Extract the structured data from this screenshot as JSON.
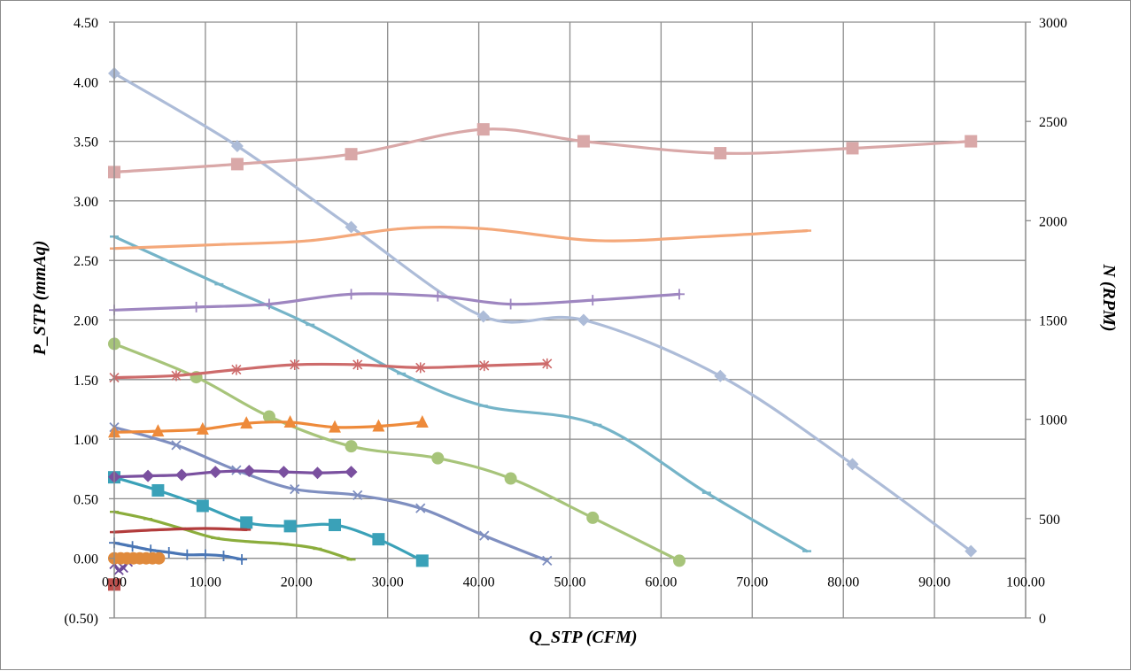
{
  "chart_data": {
    "type": "line",
    "xlabel": "Q_STP (CFM)",
    "ylabel": "P_STP (mmAq)",
    "y2label": "N (RPM)",
    "xlim": [
      0,
      100
    ],
    "ylim": [
      -0.5,
      4.5
    ],
    "y2lim": [
      0,
      3000
    ],
    "x_ticks": [
      "0.00",
      "10.00",
      "20.00",
      "30.00",
      "40.00",
      "50.00",
      "60.00",
      "70.00",
      "80.00",
      "90.00",
      "100.00"
    ],
    "y_ticks": [
      "(0.50)",
      "0.00",
      "0.50",
      "1.00",
      "1.50",
      "2.00",
      "2.50",
      "3.00",
      "3.50",
      "4.00",
      "4.50"
    ],
    "y2_ticks": [
      "0",
      "500",
      "1000",
      "1500",
      "2000",
      "2500",
      "3000"
    ],
    "negative_tick_color": "#ff0000",
    "grid": true,
    "legend": "none",
    "series": [
      {
        "axis": "left",
        "color": "#adbcd8",
        "marker": "diamond",
        "x": [
          0,
          13.5,
          26,
          40.5,
          51.5,
          66.5,
          81,
          94
        ],
        "y": [
          4.07,
          3.46,
          2.78,
          2.03,
          2.0,
          1.53,
          0.79,
          0.06
        ]
      },
      {
        "axis": "left",
        "color": "#75b4c8",
        "marker": "dash",
        "x": [
          0,
          11.5,
          21.5,
          31.5,
          40.5,
          53,
          65,
          76
        ],
        "y": [
          2.7,
          2.3,
          1.96,
          1.55,
          1.28,
          1.12,
          0.55,
          0.06
        ]
      },
      {
        "axis": "left",
        "color": "#a7c47a",
        "marker": "circle",
        "x": [
          0,
          9,
          17,
          26,
          35.5,
          43.5,
          52.5,
          62
        ],
        "y": [
          1.8,
          1.52,
          1.19,
          0.94,
          0.84,
          0.67,
          0.34,
          -0.02
        ]
      },
      {
        "axis": "left",
        "color": "#7f8fc0",
        "marker": "x",
        "x": [
          0,
          6.8,
          13.4,
          19.8,
          26.7,
          33.6,
          40.6,
          47.5
        ],
        "y": [
          1.1,
          0.95,
          0.74,
          0.58,
          0.53,
          0.42,
          0.19,
          -0.02
        ]
      },
      {
        "axis": "left",
        "color": "#3aa1b8",
        "marker": "square",
        "x": [
          0,
          4.8,
          9.7,
          14.5,
          19.3,
          24.2,
          29,
          33.8
        ],
        "y": [
          0.68,
          0.57,
          0.44,
          0.3,
          0.27,
          0.28,
          0.16,
          -0.02
        ]
      },
      {
        "axis": "left",
        "color": "#8bad3c",
        "marker": "dash",
        "x": [
          0,
          3.7,
          7.4,
          11.1,
          14.8,
          18.6,
          22.3,
          26
        ],
        "y": [
          0.39,
          0.33,
          0.25,
          0.17,
          0.14,
          0.12,
          0.08,
          -0.01
        ]
      },
      {
        "axis": "left",
        "color": "#4a76b5",
        "marker": "plus",
        "x": [
          0,
          2,
          4,
          6,
          8,
          10,
          12,
          14
        ],
        "y": [
          0.13,
          0.1,
          0.07,
          0.05,
          0.03,
          0.03,
          0.02,
          -0.01
        ]
      },
      {
        "axis": "left",
        "color": "#b23c3c",
        "marker": "dash",
        "x": [
          0,
          5,
          10,
          14.5
        ],
        "y": [
          0.22,
          0.24,
          0.25,
          0.24
        ]
      },
      {
        "axis": "left",
        "color": "#6e4a9a",
        "marker": "x",
        "x": [
          0,
          0.5,
          1.0,
          1.5
        ],
        "y": [
          -0.05,
          -0.1,
          -0.08,
          -0.03
        ]
      },
      {
        "axis": "left",
        "color": "#c0504d",
        "marker": "square",
        "x": [
          0
        ],
        "y": [
          -0.22
        ]
      },
      {
        "axis": "left",
        "color": "#e08a3c",
        "marker": "circle",
        "x": [
          0,
          0.7,
          1.4,
          2.1,
          2.8,
          3.5,
          4.2,
          4.9
        ],
        "y": [
          0,
          0,
          0,
          0,
          0,
          0,
          0,
          0
        ]
      },
      {
        "axis": "right",
        "color": "#d9a8a8",
        "marker": "square",
        "x": [
          0,
          13.5,
          26,
          40.5,
          51.5,
          66.5,
          81,
          94
        ],
        "y": [
          2245,
          2285,
          2335,
          2460,
          2400,
          2340,
          2365,
          2400
        ]
      },
      {
        "axis": "right",
        "color": "#f4a87a",
        "marker": "dash",
        "x": [
          0,
          11.5,
          21.5,
          31.5,
          40.5,
          53,
          65,
          76
        ],
        "y": [
          1860,
          1880,
          1900,
          1960,
          1960,
          1900,
          1920,
          1950
        ]
      },
      {
        "axis": "right",
        "color": "#9e86c0",
        "marker": "plus",
        "x": [
          0,
          9,
          17,
          26,
          35.5,
          43.5,
          52.5,
          62
        ],
        "y": [
          1550,
          1565,
          1580,
          1630,
          1620,
          1580,
          1600,
          1630
        ]
      },
      {
        "axis": "right",
        "color": "#cd6b6b",
        "marker": "asterisk",
        "x": [
          0,
          6.8,
          13.4,
          19.8,
          26.7,
          33.6,
          40.6,
          47.5
        ],
        "y": [
          1210,
          1220,
          1250,
          1275,
          1275,
          1260,
          1270,
          1280
        ]
      },
      {
        "axis": "right",
        "color": "#ee8a3a",
        "marker": "triangle",
        "x": [
          0,
          4.8,
          9.7,
          14.5,
          19.3,
          24.2,
          29,
          33.8
        ],
        "y": [
          935,
          940,
          950,
          980,
          985,
          960,
          965,
          985
        ]
      },
      {
        "axis": "right",
        "color": "#7a509f",
        "marker": "diamond",
        "x": [
          0,
          3.7,
          7.4,
          11.1,
          14.8,
          18.6,
          22.3,
          26
        ],
        "y": [
          710,
          715,
          720,
          735,
          740,
          735,
          730,
          735
        ]
      }
    ]
  }
}
